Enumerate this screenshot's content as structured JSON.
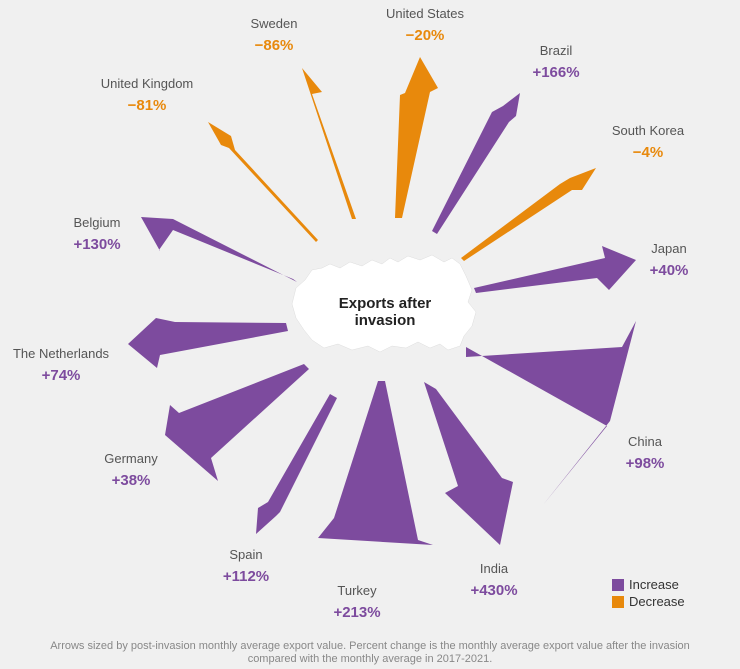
{
  "colors": {
    "increase": "#7d4b9e",
    "decrease": "#e8890c",
    "map": "#ffffff"
  },
  "center_label": [
    "Exports after",
    "invasion"
  ],
  "legend": {
    "increase": "Increase",
    "decrease": "Decrease"
  },
  "note": "Arrows sized by post-invasion monthly average export value. Percent change is the monthly average export value after the invasion compared with the monthly average in 2017-2021.",
  "chart_data": {
    "type": "radial-arrows",
    "title": "",
    "series": [
      {
        "country": "Sweden",
        "label": "−86%",
        "change_pct": -86,
        "direction": "decrease"
      },
      {
        "country": "United States",
        "label": "−20%",
        "change_pct": -20,
        "direction": "decrease"
      },
      {
        "country": "Brazil",
        "label": "+166%",
        "change_pct": 166,
        "direction": "increase"
      },
      {
        "country": "South Korea",
        "label": "−4%",
        "change_pct": -4,
        "direction": "decrease"
      },
      {
        "country": "Japan",
        "label": "+40%",
        "change_pct": 40,
        "direction": "increase"
      },
      {
        "country": "China",
        "label": "+98%",
        "change_pct": 98,
        "direction": "increase"
      },
      {
        "country": "India",
        "label": "+430%",
        "change_pct": 430,
        "direction": "increase"
      },
      {
        "country": "Turkey",
        "label": "+213%",
        "change_pct": 213,
        "direction": "increase"
      },
      {
        "country": "Spain",
        "label": "+112%",
        "change_pct": 112,
        "direction": "increase"
      },
      {
        "country": "Germany",
        "label": "+38%",
        "change_pct": 38,
        "direction": "increase"
      },
      {
        "country": "The Netherlands",
        "label": "+74%",
        "change_pct": 74,
        "direction": "increase"
      },
      {
        "country": "Belgium",
        "label": "+130%",
        "change_pct": 130,
        "direction": "increase"
      },
      {
        "country": "United Kingdom",
        "label": "−81%",
        "change_pct": -81,
        "direction": "decrease"
      }
    ]
  }
}
